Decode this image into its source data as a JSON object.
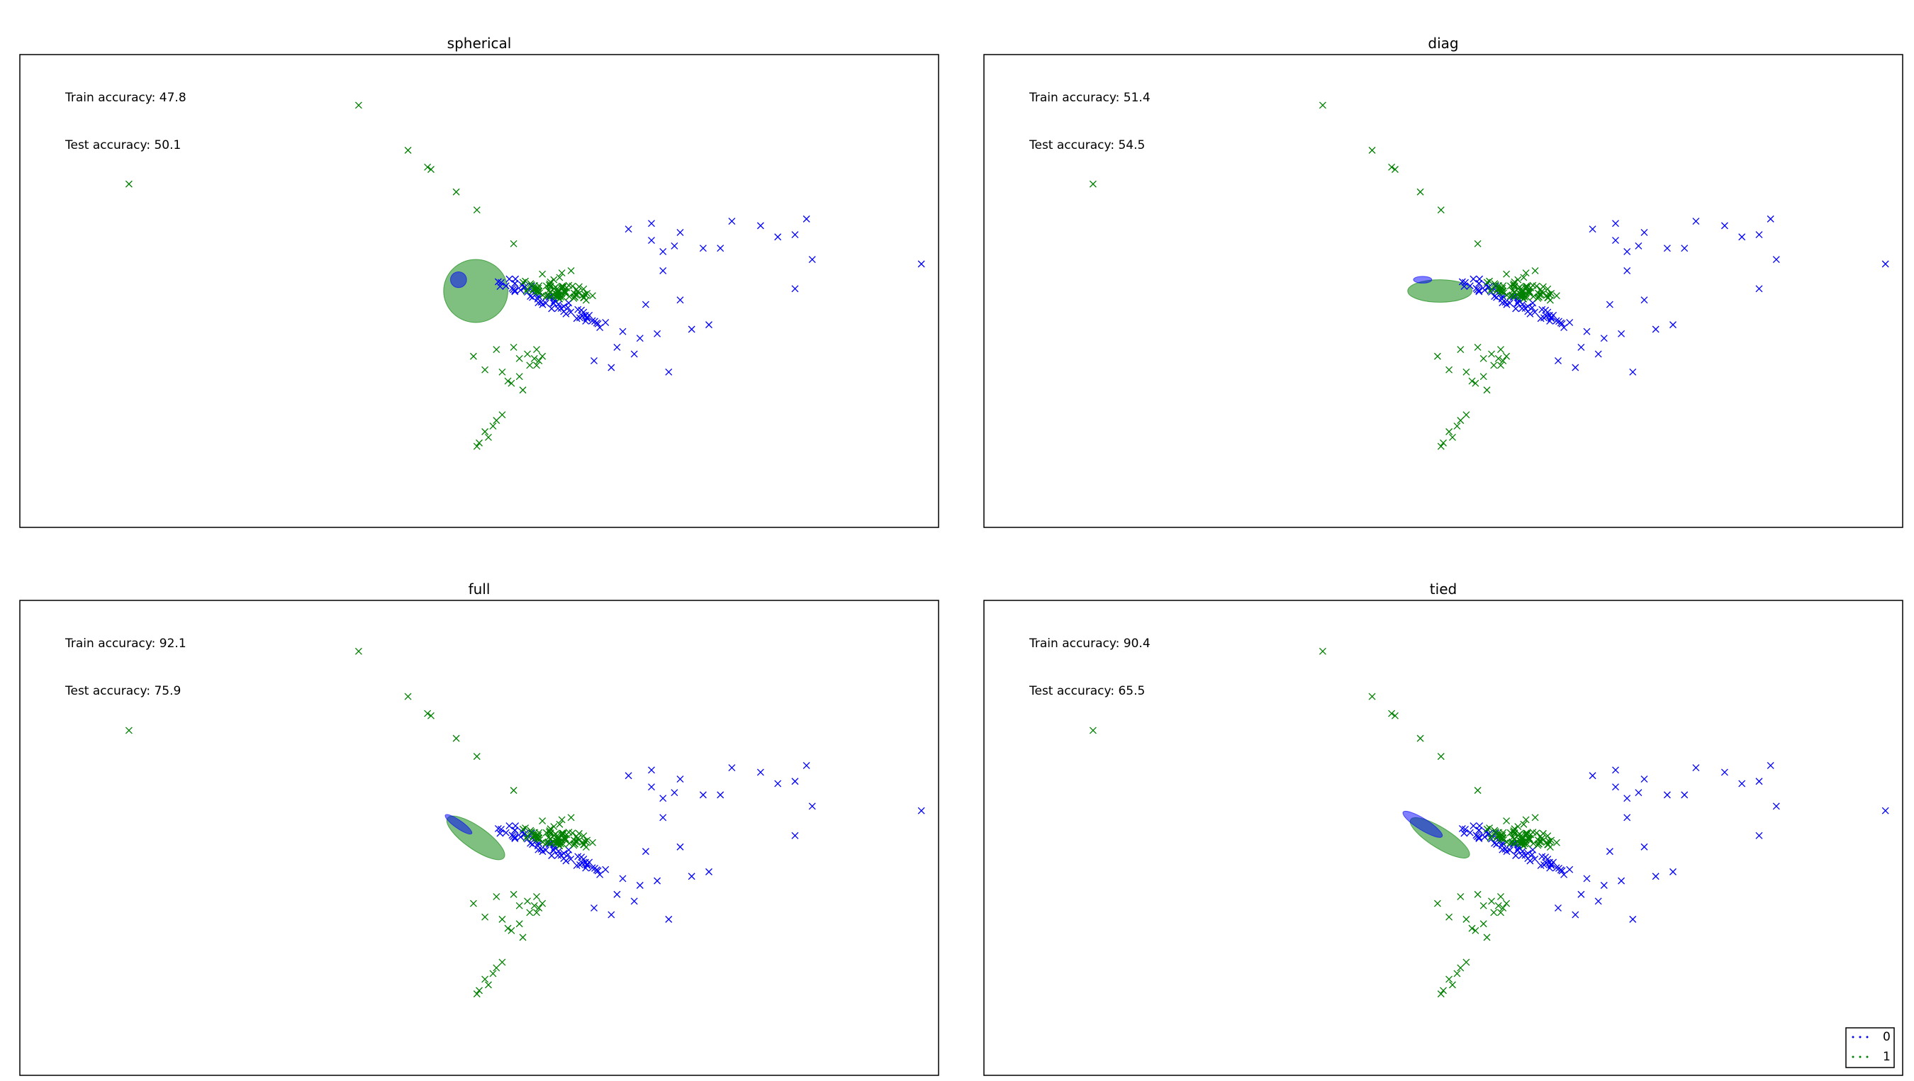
{
  "figure": {
    "colors": {
      "class_0": "#0000ff",
      "class_1": "#008000",
      "frame": "#000000"
    },
    "legend": {
      "placement": "lower-right",
      "entries": [
        "0",
        "1"
      ]
    }
  },
  "chart_data": [
    {
      "type": "scatter",
      "title": "spherical",
      "annotations": [
        "Train accuracy: 47.8",
        "Test accuracy: 50.1"
      ],
      "ellipses": [
        {
          "cx": 0.97,
          "cy": 0.0,
          "rx": 0.28,
          "ry": 0.28,
          "angle": 0,
          "color": "#008000"
        },
        {
          "cx": 0.82,
          "cy": 0.1,
          "rx": 0.07,
          "ry": 0.07,
          "angle": 0,
          "color": "#0000ff"
        }
      ]
    },
    {
      "type": "scatter",
      "title": "diag",
      "annotations": [
        "Train accuracy: 51.4",
        "Test accuracy: 54.5"
      ],
      "ellipses": [
        {
          "cx": 0.97,
          "cy": 0.0,
          "rx": 0.28,
          "ry": 0.1,
          "angle": 0,
          "color": "#008000"
        },
        {
          "cx": 0.82,
          "cy": 0.1,
          "rx": 0.08,
          "ry": 0.03,
          "angle": 0,
          "color": "#0000ff"
        }
      ]
    },
    {
      "type": "scatter",
      "title": "full",
      "annotations": [
        "Train accuracy: 92.1",
        "Test accuracy: 75.9"
      ],
      "ellipses": [
        {
          "cx": 0.97,
          "cy": 0.0,
          "rx": 0.3,
          "ry": 0.1,
          "angle": 35,
          "color": "#008000"
        },
        {
          "cx": 0.82,
          "cy": 0.12,
          "rx": 0.14,
          "ry": 0.035,
          "angle": 35,
          "color": "#0000ff"
        }
      ]
    },
    {
      "type": "scatter",
      "title": "tied",
      "annotations": [
        "Train accuracy: 90.4",
        "Test accuracy: 65.5"
      ],
      "ellipses": [
        {
          "cx": 0.97,
          "cy": 0.0,
          "rx": 0.3,
          "ry": 0.09,
          "angle": 32,
          "color": "#008000"
        },
        {
          "cx": 0.82,
          "cy": 0.12,
          "rx": 0.2,
          "ry": 0.05,
          "angle": 32,
          "color": "#0000ff"
        }
      ]
    }
  ],
  "shared_points": {
    "xlim": [
      -3.0,
      5.0
    ],
    "ylim": [
      -2.1,
      2.1
    ],
    "class_0_sparse": [
      [
        2.3,
        0.55
      ],
      [
        2.5,
        0.45
      ],
      [
        2.6,
        0.35
      ],
      [
        2.7,
        0.4
      ],
      [
        2.5,
        0.6
      ],
      [
        2.75,
        0.52
      ],
      [
        2.95,
        0.38
      ],
      [
        3.2,
        0.62
      ],
      [
        3.45,
        0.58
      ],
      [
        3.6,
        0.48
      ],
      [
        3.75,
        0.5
      ],
      [
        3.9,
        0.28
      ],
      [
        3.85,
        0.64
      ],
      [
        4.85,
        0.24
      ],
      [
        3.1,
        0.38
      ],
      [
        2.6,
        0.18
      ],
      [
        2.1,
        -0.28
      ],
      [
        2.25,
        -0.36
      ],
      [
        2.4,
        -0.42
      ],
      [
        2.2,
        -0.5
      ],
      [
        2.35,
        -0.56
      ],
      [
        2.0,
        -0.62
      ],
      [
        2.55,
        -0.38
      ],
      [
        2.85,
        -0.34
      ],
      [
        3.0,
        -0.3
      ],
      [
        2.15,
        -0.68
      ],
      [
        2.65,
        -0.72
      ],
      [
        2.45,
        -0.12
      ],
      [
        3.75,
        0.02
      ],
      [
        2.75,
        -0.08
      ]
    ],
    "class_0_cluster": {
      "x0": 1.2,
      "y0": 0.1,
      "x1": 2.05,
      "y1": -0.3,
      "n": 60,
      "spread": 0.05
    },
    "class_1_sparse": [
      [
        -2.05,
        0.95
      ],
      [
        -0.05,
        1.65
      ],
      [
        0.38,
        1.25
      ],
      [
        0.55,
        1.1
      ],
      [
        0.58,
        1.08
      ],
      [
        0.8,
        0.88
      ],
      [
        0.98,
        0.72
      ],
      [
        1.3,
        0.42
      ],
      [
        1.55,
        0.15
      ],
      [
        1.62,
        0.08
      ],
      [
        1.7,
        0.12
      ],
      [
        1.68,
        0.02
      ],
      [
        1.75,
        -0.02
      ],
      [
        1.72,
        0.16
      ],
      [
        1.78,
        0.05
      ],
      [
        1.6,
        -0.04
      ],
      [
        1.65,
        0.1
      ],
      [
        1.8,
        0.18
      ],
      [
        0.95,
        -0.58
      ],
      [
        1.05,
        -0.7
      ],
      [
        1.15,
        -0.52
      ],
      [
        1.3,
        -0.5
      ],
      [
        1.42,
        -0.56
      ],
      [
        1.5,
        -0.52
      ],
      [
        1.48,
        -0.6
      ],
      [
        1.55,
        -0.58
      ],
      [
        1.35,
        -0.6
      ],
      [
        1.2,
        -0.72
      ],
      [
        1.35,
        -0.76
      ],
      [
        1.25,
        -0.8
      ],
      [
        1.38,
        -0.88
      ],
      [
        1.5,
        -0.66
      ],
      [
        1.28,
        -0.82
      ],
      [
        1.52,
        -0.62
      ],
      [
        1.44,
        -0.66
      ],
      [
        1.2,
        -1.1
      ],
      [
        1.15,
        -1.15
      ],
      [
        1.05,
        -1.25
      ],
      [
        1.08,
        -1.3
      ],
      [
        1.0,
        -1.35
      ],
      [
        0.98,
        -1.38
      ],
      [
        1.12,
        -1.2
      ]
    ],
    "class_1_cluster": {
      "x0": 1.4,
      "y0": 0.04,
      "x1": 1.95,
      "y1": -0.04,
      "n": 70,
      "spread": 0.06
    }
  }
}
